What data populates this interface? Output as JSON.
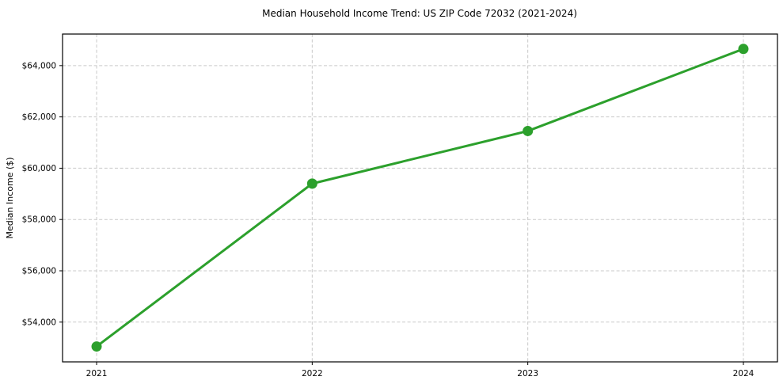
{
  "chart_data": {
    "type": "line",
    "title": "Median Household Income Trend: US ZIP Code 72032 (2021-2024)",
    "xlabel": "",
    "ylabel": "Median Income ($)",
    "x": [
      2021,
      2022,
      2023,
      2024
    ],
    "xtick_labels": [
      "2021",
      "2022",
      "2023",
      "2024"
    ],
    "values": [
      53050,
      59400,
      61450,
      64650
    ],
    "yticks": [
      54000,
      56000,
      58000,
      60000,
      62000,
      64000
    ],
    "ytick_labels": [
      "$54,000",
      "$56,000",
      "$58,000",
      "$60,000",
      "$62,000",
      "$64,000"
    ],
    "ylim": [
      52450,
      65230
    ],
    "grid": "dashed, both axes",
    "legend": "none",
    "line_color": "#2ca02c",
    "marker": "circle",
    "grid_color": "#c9c9c9",
    "background_color": "#ffffff"
  }
}
